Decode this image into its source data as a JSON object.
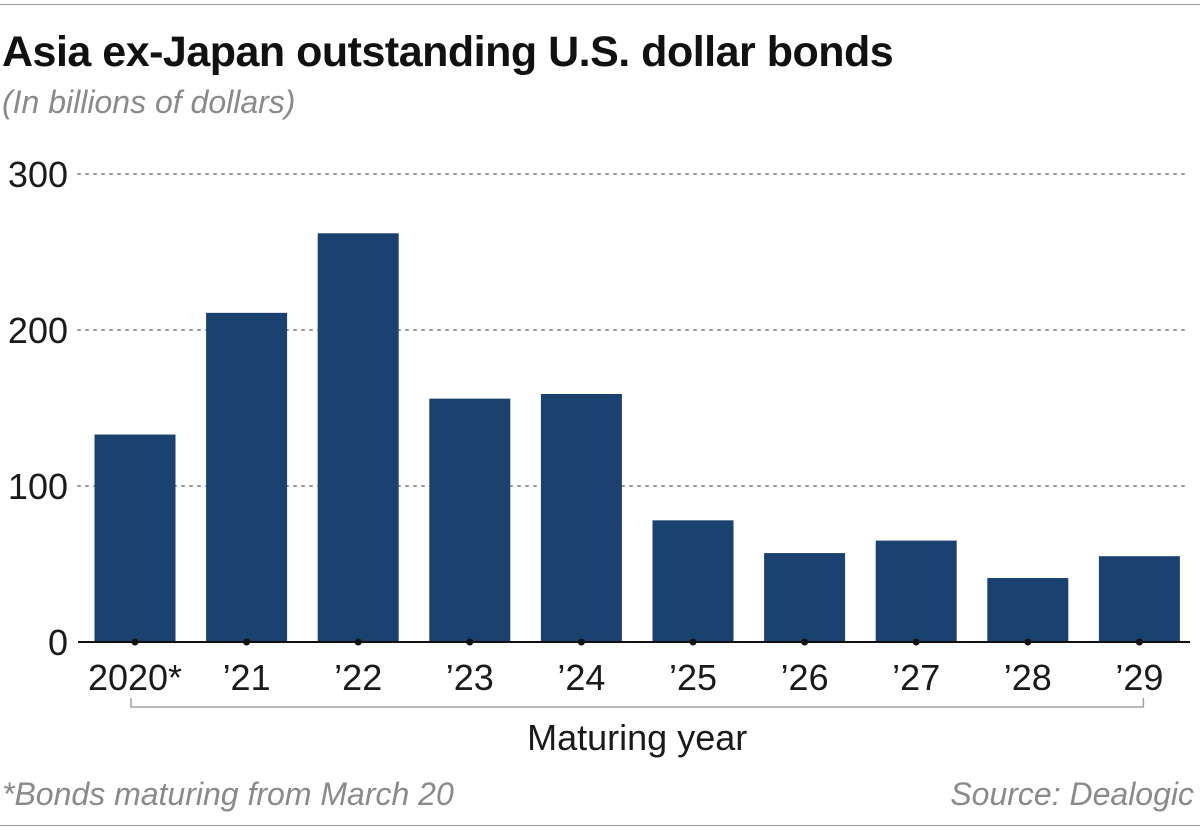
{
  "header": {
    "title": "Asia ex-Japan outstanding U.S. dollar bonds",
    "subtitle": "(In billions of dollars)"
  },
  "footer": {
    "footnote": "*Bonds maturing from March 20",
    "source": "Source: Dealogic"
  },
  "colors": {
    "bar": "#1b4170",
    "grid": "#9a9a9a",
    "text": "#1a1a1a"
  },
  "chart_data": {
    "type": "bar",
    "title": "Asia ex-Japan outstanding U.S. dollar bonds",
    "subtitle": "(In billions of dollars)",
    "xlabel": "Maturing year",
    "ylabel": "",
    "ylim": [
      0,
      300
    ],
    "yticks": [
      0,
      100,
      200,
      300
    ],
    "grid": "horizontal dotted",
    "categories": [
      "2020*",
      "’21",
      "’22",
      "’23",
      "’24",
      "’25",
      "’26",
      "’27",
      "’28",
      "’29"
    ],
    "values": [
      133,
      211,
      262,
      156,
      159,
      78,
      57,
      65,
      41,
      55
    ]
  }
}
